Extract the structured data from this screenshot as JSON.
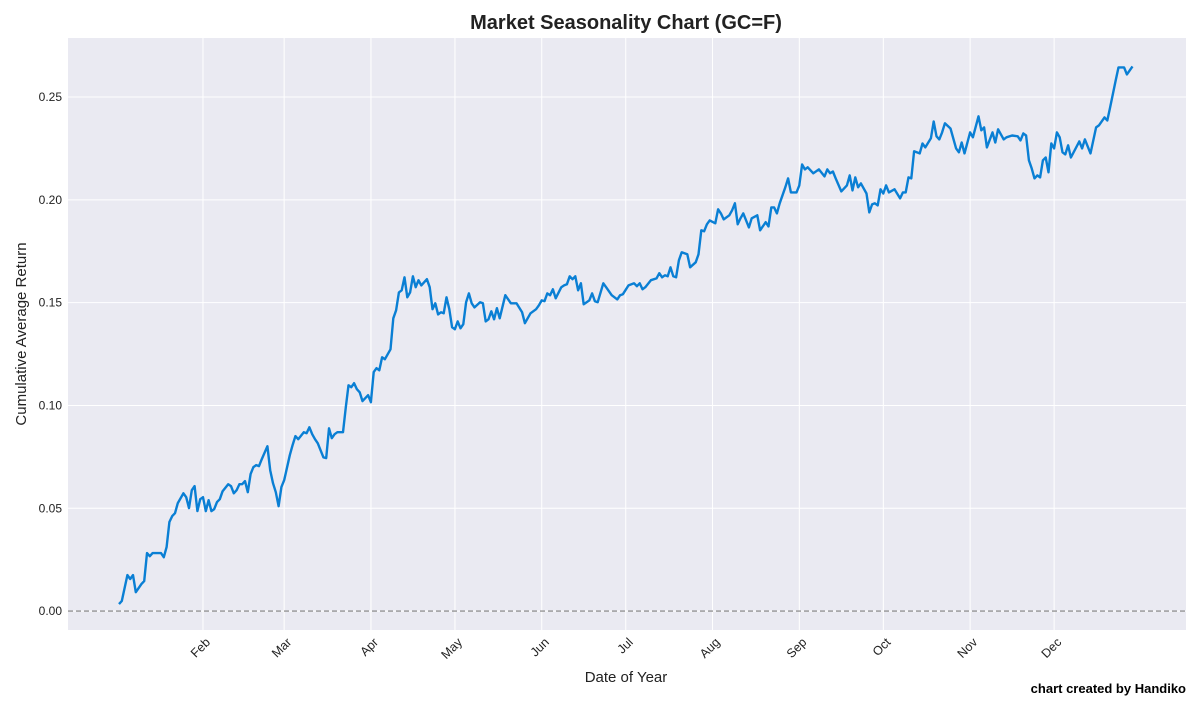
{
  "chart_data": {
    "type": "line",
    "title": "Market Seasonality Chart (GC=F)",
    "xlabel": "Date of Year",
    "ylabel": "Cumulative Average Return",
    "footnote": "chart created by Handiko",
    "xlim": [
      -16.2,
      383.1
    ],
    "ylim": [
      -0.0092,
      0.2787
    ],
    "grid": true,
    "colors": {
      "line": "#0a7fd4",
      "plot_bg": "#eaeaf2",
      "grid": "#ffffff",
      "zero_line": "#808080"
    },
    "x_ticks": [
      {
        "label": "Feb",
        "day": 32
      },
      {
        "label": "Mar",
        "day": 61
      },
      {
        "label": "Apr",
        "day": 92
      },
      {
        "label": "May",
        "day": 122
      },
      {
        "label": "Jun",
        "day": 153
      },
      {
        "label": "Jul",
        "day": 183
      },
      {
        "label": "Aug",
        "day": 214
      },
      {
        "label": "Sep",
        "day": 245
      },
      {
        "label": "Oct",
        "day": 275
      },
      {
        "label": "Nov",
        "day": 306
      },
      {
        "label": "Dec",
        "day": 336
      }
    ],
    "y_ticks": [
      {
        "label": "0.00",
        "value": 0
      },
      {
        "label": "0.05",
        "value": 0.05
      },
      {
        "label": "0.10",
        "value": 0.1
      },
      {
        "label": "0.15",
        "value": 0.15
      },
      {
        "label": "0.20",
        "value": 0.2
      },
      {
        "label": "0.25",
        "value": 0.25
      }
    ],
    "reference_line": {
      "value": 0,
      "style": "dashed"
    },
    "series": [
      {
        "name": "GC=F",
        "x": [
          2,
          3,
          5,
          6,
          7,
          8,
          10,
          11,
          12,
          13,
          14,
          17,
          18,
          19,
          20,
          21,
          22,
          23,
          25,
          26,
          27,
          28,
          29,
          30,
          31,
          32,
          33,
          34,
          35,
          36,
          37,
          38,
          39,
          41,
          42,
          43,
          44,
          45,
          46,
          47,
          48,
          49,
          50,
          51,
          52,
          53,
          55,
          56,
          57,
          58,
          59,
          60,
          61,
          63,
          64,
          65,
          66,
          68,
          69,
          70,
          71,
          72,
          73,
          74,
          75,
          76,
          77,
          78,
          79,
          80,
          82,
          83,
          84,
          85,
          86,
          87,
          88,
          89,
          91,
          92,
          93,
          94,
          95,
          96,
          97,
          99,
          100,
          101,
          102,
          103,
          104,
          105,
          106,
          107,
          108,
          109,
          110,
          112,
          113,
          114,
          115,
          116,
          117,
          118,
          119,
          120,
          121,
          122,
          123,
          124,
          125,
          126,
          127,
          128,
          129,
          131,
          132,
          133,
          134,
          135,
          136,
          137,
          138,
          140,
          142,
          144,
          146,
          147,
          149,
          151,
          152,
          153,
          154,
          155,
          156,
          157,
          158,
          160,
          161,
          162,
          163,
          164,
          165,
          166,
          167,
          168,
          170,
          171,
          172,
          173,
          175,
          176,
          178,
          180,
          181,
          182,
          184,
          186,
          187,
          188,
          189,
          190,
          192,
          194,
          195,
          196,
          197,
          198,
          199,
          200,
          201,
          202,
          203,
          205,
          206,
          208,
          209,
          210,
          211,
          212,
          213,
          215,
          216,
          217,
          218,
          220,
          221,
          222,
          223,
          224,
          225,
          227,
          228,
          230,
          231,
          233,
          234,
          235,
          236,
          237,
          238,
          240,
          241,
          242,
          244,
          245,
          246,
          247,
          248,
          250,
          252,
          254,
          255,
          256,
          257,
          258,
          260,
          262,
          263,
          264,
          265,
          266,
          267,
          269,
          270,
          271,
          272,
          273,
          274,
          275,
          276,
          277,
          279,
          281,
          282,
          283,
          284,
          285,
          286,
          288,
          289,
          290,
          292,
          293,
          294,
          295,
          296,
          297,
          299,
          301,
          302,
          303,
          304,
          306,
          307,
          309,
          310,
          311,
          312,
          314,
          315,
          316,
          318,
          319,
          321,
          323,
          324,
          325,
          326,
          327,
          328,
          329,
          330,
          331,
          332,
          333,
          334,
          335,
          336,
          337,
          338,
          339,
          340,
          341,
          342,
          345,
          346,
          347,
          349,
          351,
          352,
          354,
          355,
          356,
          358,
          359,
          361,
          362,
          364
        ],
        "y": [
          0.0034,
          0.0049,
          0.0175,
          0.0156,
          0.0175,
          0.0092,
          0.0131,
          0.0146,
          0.0282,
          0.0267,
          0.0282,
          0.0282,
          0.0262,
          0.0311,
          0.0433,
          0.0462,
          0.0476,
          0.0525,
          0.0573,
          0.0554,
          0.0501,
          0.0588,
          0.0608,
          0.0486,
          0.0544,
          0.0554,
          0.0486,
          0.0539,
          0.0486,
          0.0496,
          0.053,
          0.0544,
          0.0583,
          0.0617,
          0.0608,
          0.0573,
          0.0588,
          0.0617,
          0.0617,
          0.0632,
          0.0578,
          0.0666,
          0.07,
          0.071,
          0.0705,
          0.0739,
          0.0802,
          0.0685,
          0.0622,
          0.0578,
          0.051,
          0.0603,
          0.0637,
          0.0758,
          0.0807,
          0.0851,
          0.0836,
          0.087,
          0.0865,
          0.0894,
          0.086,
          0.0836,
          0.0816,
          0.0782,
          0.0748,
          0.0744,
          0.0889,
          0.0841,
          0.086,
          0.087,
          0.087,
          0.0991,
          0.1098,
          0.1089,
          0.1108,
          0.1079,
          0.1064,
          0.1021,
          0.105,
          0.1016,
          0.1162,
          0.1181,
          0.1171,
          0.1234,
          0.1225,
          0.1273,
          0.1424,
          0.1463,
          0.155,
          0.156,
          0.1623,
          0.1526,
          0.155,
          0.1628,
          0.1575,
          0.1609,
          0.1584,
          0.1614,
          0.1575,
          0.1468,
          0.1497,
          0.1443,
          0.1453,
          0.1448,
          0.1526,
          0.1468,
          0.138,
          0.1371,
          0.1409,
          0.1375,
          0.1395,
          0.1502,
          0.1545,
          0.1497,
          0.1477,
          0.1502,
          0.1497,
          0.1409,
          0.1419,
          0.1458,
          0.1419,
          0.1473,
          0.1424,
          0.1536,
          0.1497,
          0.1497,
          0.1453,
          0.14,
          0.1448,
          0.1468,
          0.1487,
          0.1511,
          0.1507,
          0.1545,
          0.1536,
          0.1565,
          0.1521,
          0.1575,
          0.1584,
          0.1589,
          0.1628,
          0.1614,
          0.1628,
          0.156,
          0.1594,
          0.1492,
          0.1511,
          0.1545,
          0.1507,
          0.1502,
          0.1594,
          0.1575,
          0.1536,
          0.1516,
          0.1536,
          0.1541,
          0.1584,
          0.1594,
          0.158,
          0.1594,
          0.1565,
          0.1575,
          0.1609,
          0.1618,
          0.1643,
          0.1623,
          0.1633,
          0.1628,
          0.1672,
          0.1628,
          0.1623,
          0.1706,
          0.1745,
          0.1735,
          0.1672,
          0.1696,
          0.1735,
          0.1852,
          0.1847,
          0.1881,
          0.19,
          0.1886,
          0.1954,
          0.1934,
          0.1905,
          0.1925,
          0.1949,
          0.1983,
          0.1881,
          0.191,
          0.1934,
          0.1866,
          0.191,
          0.1925,
          0.1852,
          0.1891,
          0.1871,
          0.1963,
          0.1963,
          0.1934,
          0.1983,
          0.2061,
          0.2104,
          0.2036,
          0.2036,
          0.207,
          0.2172,
          0.2148,
          0.2158,
          0.2129,
          0.2148,
          0.2114,
          0.2148,
          0.2129,
          0.2138,
          0.2104,
          0.2041,
          0.207,
          0.2119,
          0.2046,
          0.2109,
          0.2061,
          0.208,
          0.2031,
          0.1939,
          0.1978,
          0.1983,
          0.1973,
          0.2051,
          0.2031,
          0.207,
          0.2036,
          0.2051,
          0.2007,
          0.2036,
          0.2036,
          0.2109,
          0.2104,
          0.2236,
          0.2226,
          0.2274,
          0.2255,
          0.2299,
          0.2381,
          0.2309,
          0.2294,
          0.2328,
          0.2372,
          0.2347,
          0.225,
          0.2231,
          0.2279,
          0.2226,
          0.2328,
          0.2304,
          0.2406,
          0.2338,
          0.2352,
          0.2255,
          0.2328,
          0.2279,
          0.2343,
          0.2294,
          0.2304,
          0.2313,
          0.2309,
          0.2289,
          0.2323,
          0.2313,
          0.2192,
          0.2153,
          0.2104,
          0.2119,
          0.2109,
          0.2192,
          0.2206,
          0.2134,
          0.2274,
          0.225,
          0.2328,
          0.2304,
          0.2231,
          0.2221,
          0.2265,
          0.2206,
          0.2284,
          0.225,
          0.2294,
          0.2226,
          0.2352,
          0.2362,
          0.2401,
          0.2386,
          0.2449,
          0.2581,
          0.2644,
          0.2644,
          0.261,
          0.2649
        ]
      }
    ]
  }
}
